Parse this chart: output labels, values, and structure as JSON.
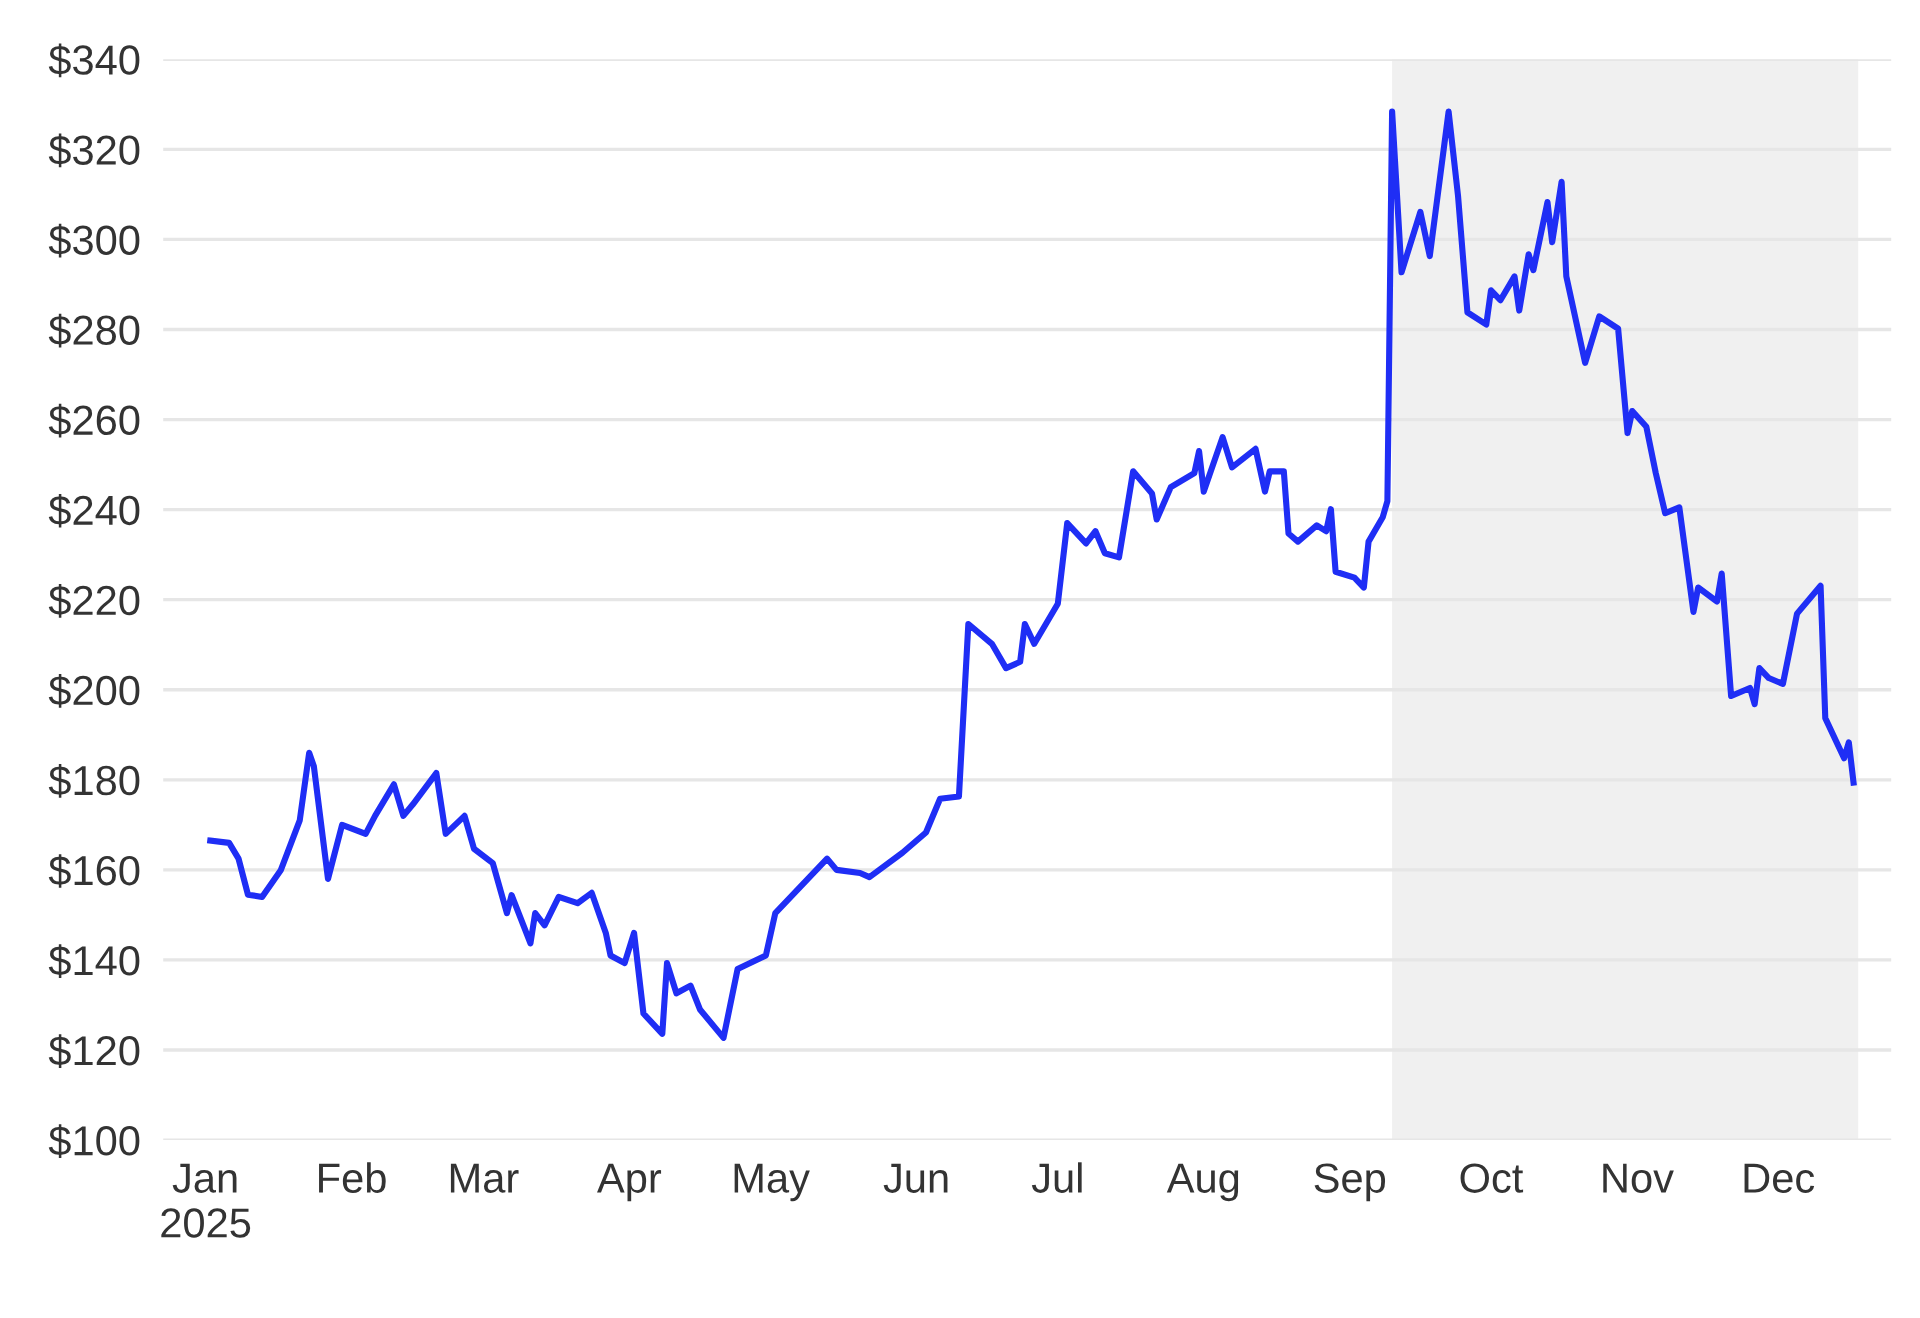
{
  "chart_data": {
    "type": "line",
    "x": [
      "2025-01-02",
      "2025-01-06",
      "2025-01-08",
      "2025-01-10",
      "2025-01-13",
      "2025-01-17",
      "2025-01-21",
      "2025-01-23",
      "2025-01-24",
      "2025-01-27",
      "2025-01-30",
      "2025-02-04",
      "2025-02-06",
      "2025-02-10",
      "2025-02-12",
      "2025-02-14",
      "2025-02-19",
      "2025-02-21",
      "2025-02-25",
      "2025-02-27",
      "2025-03-03",
      "2025-03-06",
      "2025-03-07",
      "2025-03-11",
      "2025-03-12",
      "2025-03-14",
      "2025-03-17",
      "2025-03-21",
      "2025-03-24",
      "2025-03-27",
      "2025-03-28",
      "2025-03-31",
      "2025-04-02",
      "2025-04-04",
      "2025-04-08",
      "2025-04-09",
      "2025-04-11",
      "2025-04-14",
      "2025-04-16",
      "2025-04-21",
      "2025-04-24",
      "2025-04-30",
      "2025-05-02",
      "2025-05-13",
      "2025-05-15",
      "2025-05-20",
      "2025-05-22",
      "2025-05-29",
      "2025-06-03",
      "2025-06-06",
      "2025-06-10",
      "2025-06-12",
      "2025-06-17",
      "2025-06-20",
      "2025-06-23",
      "2025-06-24",
      "2025-06-26",
      "2025-07-01",
      "2025-07-03",
      "2025-07-07",
      "2025-07-09",
      "2025-07-11",
      "2025-07-14",
      "2025-07-17",
      "2025-07-21",
      "2025-07-22",
      "2025-07-25",
      "2025-07-30",
      "2025-07-31",
      "2025-08-01",
      "2025-08-05",
      "2025-08-07",
      "2025-08-12",
      "2025-08-14",
      "2025-08-15",
      "2025-08-18",
      "2025-08-19",
      "2025-08-21",
      "2025-08-25",
      "2025-08-27",
      "2025-08-28",
      "2025-08-29",
      "2025-09-02",
      "2025-09-04",
      "2025-09-05",
      "2025-09-08",
      "2025-09-09",
      "2025-09-10",
      "2025-09-12",
      "2025-09-16",
      "2025-09-18",
      "2025-09-22",
      "2025-09-24",
      "2025-09-26",
      "2025-09-30",
      "2025-10-01",
      "2025-10-03",
      "2025-10-06",
      "2025-10-07",
      "2025-10-09",
      "2025-10-10",
      "2025-10-13",
      "2025-10-14",
      "2025-10-16",
      "2025-10-17",
      "2025-10-21",
      "2025-10-24",
      "2025-10-28",
      "2025-10-30",
      "2025-10-31",
      "2025-11-03",
      "2025-11-05",
      "2025-11-07",
      "2025-11-10",
      "2025-11-13",
      "2025-11-14",
      "2025-11-18",
      "2025-11-19",
      "2025-11-21",
      "2025-11-25",
      "2025-11-26",
      "2025-11-27",
      "2025-11-29",
      "2025-12-02",
      "2025-12-05",
      "2025-12-10",
      "2025-12-11",
      "2025-12-15",
      "2025-12-16",
      "2025-12-17"
    ],
    "series": [
      {
        "color": "#1f2ef5",
        "values": [
          166.5,
          166,
          162.5,
          154.5,
          154,
          160,
          171,
          186,
          183,
          158,
          170,
          168,
          172,
          179,
          172,
          174.5,
          181.5,
          168,
          172,
          164.7,
          161.5,
          150.4,
          154.4,
          143.7,
          150.4,
          147.7,
          154,
          152.6,
          154.9,
          146,
          141,
          139.3,
          146,
          128.1,
          123.6,
          139.3,
          132.6,
          134.3,
          129,
          122.7,
          138,
          141,
          150.4,
          162.5,
          160,
          159.3,
          158.4,
          163.8,
          168.3,
          175.8,
          176.3,
          214.6,
          210.2,
          204.8,
          206.2,
          214.6,
          210.2,
          219.1,
          237,
          232.5,
          235.2,
          230.3,
          229.4,
          248.5,
          243.6,
          237.8,
          245,
          248.1,
          253,
          244,
          256.1,
          249.4,
          253.5,
          244,
          248.5,
          248.5,
          234.7,
          232.9,
          236.5,
          235.2,
          240.1,
          226.2,
          224.9,
          222.7,
          232.9,
          238.3,
          241.9,
          328.4,
          292.7,
          306.1,
          296.3,
          328.4,
          309.7,
          283.8,
          281.1,
          288.7,
          286.5,
          291.8,
          284.2,
          296.7,
          293.2,
          308.3,
          299.4,
          312.8,
          291.8,
          272.6,
          282.9,
          280.2,
          257,
          261.9,
          258.4,
          248.1,
          239.2,
          240.5,
          217.3,
          222.7,
          219.6,
          225.8,
          198.6,
          200.4,
          196.8,
          204.8,
          202.6,
          201.3,
          216.9,
          223.1,
          193.7,
          184.8,
          188.3,
          179.4
        ]
      }
    ],
    "xlim": [
      "2024-12-23",
      "2025-12-25"
    ],
    "xticks": [
      {
        "value": "2025-01-01",
        "label": "Jan\n2025"
      },
      {
        "value": "2025-02-01",
        "label": "Feb"
      },
      {
        "value": "2025-03-01",
        "label": "Mar"
      },
      {
        "value": "2025-04-01",
        "label": "Apr"
      },
      {
        "value": "2025-05-01",
        "label": "May"
      },
      {
        "value": "2025-06-01",
        "label": "Jun"
      },
      {
        "value": "2025-07-01",
        "label": "Jul"
      },
      {
        "value": "2025-08-01",
        "label": "Aug"
      },
      {
        "value": "2025-09-01",
        "label": "Sep"
      },
      {
        "value": "2025-10-01",
        "label": "Oct"
      },
      {
        "value": "2025-11-01",
        "label": "Nov"
      },
      {
        "value": "2025-12-01",
        "label": "Dec"
      }
    ],
    "ylim": [
      100,
      340
    ],
    "yticks": [
      {
        "value": 100,
        "label": "$100"
      },
      {
        "value": 120,
        "label": "$120"
      },
      {
        "value": 140,
        "label": "$140"
      },
      {
        "value": 160,
        "label": "$160"
      },
      {
        "value": 180,
        "label": "$180"
      },
      {
        "value": 200,
        "label": "$200"
      },
      {
        "value": 220,
        "label": "$220"
      },
      {
        "value": 240,
        "label": "$240"
      },
      {
        "value": 260,
        "label": "$260"
      },
      {
        "value": 280,
        "label": "$280"
      },
      {
        "value": 300,
        "label": "$300"
      },
      {
        "value": 320,
        "label": "$320"
      },
      {
        "value": 340,
        "label": "$340"
      }
    ],
    "bands": [
      {
        "axis": "x",
        "from": "2025-09-10",
        "to": "2025-12-18",
        "color": "#f0f0f0"
      }
    ],
    "grid": "y",
    "marker": "none",
    "line_style": "solid"
  }
}
